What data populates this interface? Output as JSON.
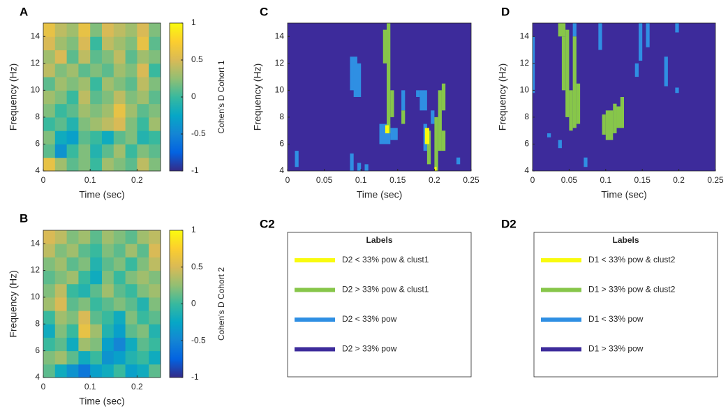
{
  "chart_data": [
    {
      "type": "heatmap",
      "panel_label": "A",
      "xlabel": "Time (sec)",
      "ylabel": "Frequency (Hz)",
      "xlim": [
        0,
        0.25
      ],
      "ylim": [
        4,
        15
      ],
      "xticks": [
        0,
        0.1,
        0.2
      ],
      "yticks": [
        4,
        6,
        8,
        10,
        12,
        14
      ],
      "x": [
        0.0125,
        0.0375,
        0.0625,
        0.0875,
        0.1125,
        0.1375,
        0.1625,
        0.1875,
        0.2125,
        0.2375
      ],
      "y": [
        4.5,
        5.5,
        6.5,
        7.5,
        8.5,
        9.5,
        10.5,
        11.5,
        12.5,
        13.5,
        14.5
      ],
      "z": [
        [
          0.6,
          0.3,
          0.1,
          0.2,
          0.0,
          0.3,
          0.2,
          0.1,
          0.4,
          0.2
        ],
        [
          0.1,
          -0.4,
          0.0,
          0.2,
          -0.1,
          0.1,
          0.3,
          0.0,
          0.2,
          0.1
        ],
        [
          0.2,
          -0.2,
          -0.3,
          0.1,
          0.0,
          -0.2,
          0.1,
          0.2,
          -0.1,
          0.0
        ],
        [
          0.0,
          0.1,
          -0.1,
          0.2,
          0.3,
          0.4,
          0.5,
          0.2,
          0.0,
          0.3
        ],
        [
          0.2,
          0.0,
          0.1,
          0.3,
          0.2,
          0.3,
          0.6,
          0.3,
          0.1,
          0.2
        ],
        [
          0.3,
          0.2,
          0.0,
          0.4,
          0.1,
          0.2,
          0.4,
          0.2,
          0.3,
          0.1
        ],
        [
          0.1,
          0.3,
          0.2,
          0.3,
          0.0,
          0.3,
          0.2,
          0.1,
          0.4,
          0.2
        ],
        [
          0.4,
          0.2,
          0.3,
          0.1,
          0.2,
          0.1,
          0.3,
          0.2,
          0.5,
          0.0
        ],
        [
          0.3,
          0.5,
          0.1,
          0.4,
          0.1,
          0.2,
          0.4,
          0.1,
          0.3,
          0.2
        ],
        [
          0.5,
          0.3,
          0.2,
          0.5,
          0.0,
          0.4,
          0.3,
          0.2,
          0.6,
          0.1
        ],
        [
          0.6,
          0.4,
          0.3,
          0.6,
          0.2,
          0.5,
          0.4,
          0.3,
          0.5,
          0.2
        ]
      ],
      "colorbar": {
        "label": "Cohen's D Cohort 1",
        "lim": [
          -1,
          1
        ],
        "ticks": [
          -1,
          -0.5,
          0,
          0.5,
          1
        ]
      }
    },
    {
      "type": "heatmap",
      "panel_label": "B",
      "xlabel": "Time (sec)",
      "ylabel": "Frequency (Hz)",
      "xlim": [
        0,
        0.25
      ],
      "ylim": [
        4,
        15
      ],
      "xticks": [
        0,
        0.1,
        0.2
      ],
      "yticks": [
        4,
        6,
        8,
        10,
        12,
        14
      ],
      "x": [
        0.0125,
        0.0375,
        0.0625,
        0.0875,
        0.1125,
        0.1375,
        0.1625,
        0.1875,
        0.2125,
        0.2375
      ],
      "y": [
        4.5,
        5.5,
        6.5,
        7.5,
        8.5,
        9.5,
        10.5,
        11.5,
        12.5,
        13.5,
        14.5
      ],
      "z": [
        [
          0.1,
          -0.2,
          -0.4,
          -0.6,
          -0.3,
          -0.2,
          0.0,
          -0.3,
          -0.2,
          0.1
        ],
        [
          0.2,
          0.3,
          0.1,
          -0.2,
          0.0,
          -0.4,
          -0.3,
          -0.1,
          0.0,
          -0.2
        ],
        [
          0.0,
          0.1,
          -0.2,
          0.3,
          0.2,
          -0.3,
          -0.5,
          -0.2,
          0.1,
          0.0
        ],
        [
          -0.2,
          0.2,
          0.0,
          0.6,
          0.3,
          -0.1,
          -0.3,
          0.1,
          0.2,
          -0.1
        ],
        [
          0.0,
          0.3,
          0.2,
          0.5,
          0.1,
          0.0,
          -0.2,
          0.2,
          0.0,
          0.1
        ],
        [
          0.3,
          0.5,
          0.1,
          0.2,
          0.0,
          0.1,
          0.2,
          0.1,
          -0.1,
          0.2
        ],
        [
          0.2,
          0.4,
          0.0,
          -0.1,
          0.1,
          0.3,
          0.1,
          0.0,
          0.2,
          0.3
        ],
        [
          0.1,
          0.2,
          0.3,
          0.0,
          -0.2,
          0.2,
          0.0,
          0.2,
          0.3,
          0.2
        ],
        [
          0.2,
          0.3,
          0.1,
          0.2,
          -0.1,
          0.1,
          0.2,
          0.0,
          0.2,
          0.4
        ],
        [
          0.4,
          0.2,
          0.3,
          0.1,
          0.0,
          0.2,
          0.1,
          0.3,
          0.1,
          0.5
        ],
        [
          0.5,
          0.4,
          0.2,
          0.3,
          0.1,
          0.3,
          0.2,
          0.1,
          0.3,
          0.4
        ]
      ],
      "colorbar": {
        "label": "Cohen's D Cohort 2",
        "lim": [
          -1,
          1
        ],
        "ticks": [
          -1,
          -0.5,
          0,
          0.5,
          1
        ]
      }
    },
    {
      "type": "region-map",
      "panel_label": "C",
      "xlabel": "Time (sec)",
      "ylabel": "Frequency (Hz)",
      "xlim": [
        0,
        0.25
      ],
      "ylim": [
        4,
        15
      ],
      "xticks": [
        0,
        0.05,
        0.1,
        0.15,
        0.2,
        0.25
      ],
      "yticks": [
        4,
        6,
        8,
        10,
        12,
        14
      ],
      "legend_label": "C2",
      "legend_title": "Labels",
      "series": [
        {
          "name": "D2 < 33% pow & clust1",
          "color": "#f9fb0e",
          "regions": [
            [
              0.133,
              0.138,
              6.8,
              7.4
            ],
            [
              0.187,
              0.193,
              6,
              7.2
            ],
            [
              0.2,
              0.203,
              4,
              4.3
            ]
          ]
        },
        {
          "name": "D2 > 33% pow & clust1",
          "color": "#87c64a",
          "regions": [
            [
              0.13,
              0.135,
              12,
              14.5
            ],
            [
              0.135,
              0.14,
              6.8,
              15
            ],
            [
              0.14,
              0.145,
              8,
              10
            ],
            [
              0.155,
              0.16,
              7.5,
              8.5
            ],
            [
              0.19,
              0.195,
              4.5,
              7
            ],
            [
              0.2,
              0.205,
              4,
              8
            ],
            [
              0.205,
              0.21,
              5.5,
              10
            ],
            [
              0.21,
              0.215,
              5.5,
              7
            ],
            [
              0.21,
              0.215,
              8.5,
              10.5
            ]
          ]
        },
        {
          "name": "D2 < 33% pow",
          "color": "#2f8fe3",
          "regions": [
            [
              0.085,
              0.095,
              10,
              12.5
            ],
            [
              0.09,
              0.1,
              9.5,
              12
            ],
            [
              0.125,
              0.14,
              6,
              7.5
            ],
            [
              0.14,
              0.15,
              6.3,
              7.2
            ],
            [
              0.155,
              0.16,
              8.5,
              10
            ],
            [
              0.175,
              0.18,
              9.5,
              10
            ],
            [
              0.18,
              0.19,
              8.5,
              10
            ],
            [
              0.085,
              0.09,
              4,
              5.3
            ],
            [
              0.01,
              0.015,
              4.3,
              5.5
            ],
            [
              0.095,
              0.1,
              4,
              4.6
            ],
            [
              0.105,
              0.11,
              4,
              4.5
            ],
            [
              0.185,
              0.19,
              5.5,
              7.5
            ],
            [
              0.23,
              0.235,
              4.5,
              5
            ],
            [
              0.195,
              0.2,
              7.5,
              8.5
            ]
          ]
        },
        {
          "name": "D2 > 33% pow",
          "color": "#3d2b9b",
          "regions": [
            [
              0,
              0.25,
              4,
              15
            ]
          ]
        }
      ]
    },
    {
      "type": "region-map",
      "panel_label": "D",
      "xlabel": "Time (sec)",
      "ylabel": "Frequency (Hz)",
      "xlim": [
        0,
        0.25
      ],
      "ylim": [
        4,
        15
      ],
      "xticks": [
        0,
        0.05,
        0.1,
        0.15,
        0.2,
        0.25
      ],
      "yticks": [
        4,
        6,
        8,
        10,
        12,
        14
      ],
      "legend_label": "D2",
      "legend_title": "Labels",
      "series": [
        {
          "name": "D1 < 33% pow & clust2",
          "color": "#f9fb0e",
          "regions": []
        },
        {
          "name": "D1 > 33% pow & clust2",
          "color": "#87c64a",
          "regions": [
            [
              0.035,
              0.045,
              14,
              15
            ],
            [
              0.04,
              0.045,
              10,
              14
            ],
            [
              0.045,
              0.05,
              8,
              14.5
            ],
            [
              0.05,
              0.055,
              7,
              10
            ],
            [
              0.055,
              0.06,
              7.2,
              14
            ],
            [
              0.06,
              0.065,
              7.5,
              10.5
            ],
            [
              0.095,
              0.1,
              6.7,
              8.2
            ],
            [
              0.1,
              0.11,
              6.3,
              8.5
            ],
            [
              0.11,
              0.115,
              6.8,
              9
            ],
            [
              0.115,
              0.125,
              7.2,
              8.8
            ],
            [
              0.12,
              0.125,
              7.5,
              9.5
            ]
          ]
        },
        {
          "name": "D1 < 33% pow",
          "color": "#2f8fe3",
          "regions": [
            [
              0,
              0.003,
              9.8,
              14
            ],
            [
              0.055,
              0.06,
              14,
              15
            ],
            [
              0.09,
              0.095,
              13,
              15
            ],
            [
              0.145,
              0.15,
              12.2,
              15
            ],
            [
              0.155,
              0.16,
              13.2,
              15
            ],
            [
              0.18,
              0.185,
              10.3,
              12.5
            ],
            [
              0.14,
              0.145,
              11,
              12
            ],
            [
              0.195,
              0.2,
              9.8,
              10.2
            ],
            [
              0.035,
              0.04,
              5.7,
              6.3
            ],
            [
              0.07,
              0.075,
              4.3,
              5
            ],
            [
              0.02,
              0.025,
              6.5,
              6.8
            ],
            [
              0.195,
              0.2,
              14.3,
              15
            ]
          ]
        },
        {
          "name": "D1 > 33% pow",
          "color": "#3d2b9b",
          "regions": [
            [
              0,
              0.25,
              4,
              15
            ]
          ]
        }
      ]
    }
  ]
}
